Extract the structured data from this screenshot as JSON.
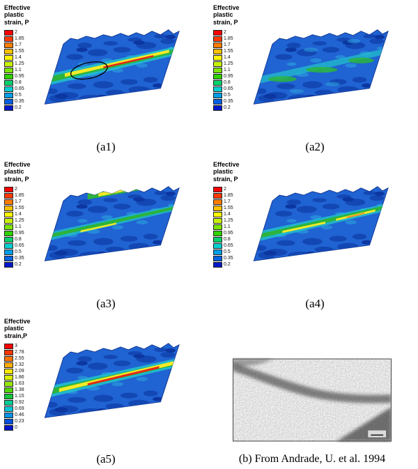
{
  "figure": {
    "panels": [
      {
        "id": "a1",
        "legend_title": "Effective\nplastic\nstrain, P",
        "legend_values": [
          "2",
          "1.85",
          "1.7",
          "1.55",
          "1.4",
          "1.25",
          "1.1",
          "0.95",
          "0.8",
          "0.65",
          "0.5",
          "0.35",
          "0.2"
        ],
        "caption": "(a1)"
      },
      {
        "id": "a2",
        "legend_title": "Effective\nplastic\nstrain, P",
        "legend_values": [
          "2",
          "1.85",
          "1.7",
          "1.55",
          "1.4",
          "1.25",
          "1.1",
          "0.95",
          "0.8",
          "0.65",
          "0.5",
          "0.35",
          "0.2"
        ],
        "caption": "(a2)"
      },
      {
        "id": "a3",
        "legend_title": "Effective\nplastic\nstrain, P",
        "legend_values": [
          "2",
          "1.85",
          "1.7",
          "1.55",
          "1.4",
          "1.25",
          "1.1",
          "0.95",
          "0.8",
          "0.65",
          "0.5",
          "0.35",
          "0.2"
        ],
        "caption": "(a3)"
      },
      {
        "id": "a4",
        "legend_title": "Effective\nplastic\nstrain, P",
        "legend_values": [
          "2",
          "1.85",
          "1.7",
          "1.55",
          "1.4",
          "1.25",
          "1.1",
          "0.95",
          "0.8",
          "0.65",
          "0.5",
          "0.35",
          "0.2"
        ],
        "caption": "(a4)"
      },
      {
        "id": "a5",
        "legend_title": "Effective\nplastic\nstrain,P",
        "legend_values": [
          "3",
          "2.78",
          "2.55",
          "2.32",
          "2.09",
          "1.86",
          "1.63",
          "1.38",
          "1.15",
          "0.92",
          "0.69",
          "0.46",
          "0.23",
          "0"
        ],
        "caption": "(a5)"
      }
    ],
    "micrograph": {
      "caption": "(b) From Andrade, U. et al. 1994"
    }
  },
  "colors": {
    "legend_13": [
      "#fe0000",
      "#ff3a00",
      "#ff7e00",
      "#ffc100",
      "#fff600",
      "#c8f200",
      "#7ce600",
      "#2ed200",
      "#00d26e",
      "#00cfd2",
      "#009ee8",
      "#0060e0",
      "#0018c8"
    ],
    "legend_14": [
      "#fe0000",
      "#ff3600",
      "#ff7200",
      "#ffae00",
      "#ffe900",
      "#d8f000",
      "#96e600",
      "#50d800",
      "#14c83c",
      "#00cc96",
      "#00c8d8",
      "#0092e6",
      "#0052dc",
      "#0014c8"
    ],
    "base_sheet_blue": "#2063d2",
    "band_cyan": "#22c4cc",
    "band_green": "#2cb43c",
    "band_yellow": "#f2ea28",
    "band_red": "#e42818"
  },
  "chart_data": [
    {
      "type": "heatmap",
      "subfigure": "(a1)",
      "title": "Effective plastic strain, P",
      "colorbar_values": [
        2,
        1.85,
        1.7,
        1.55,
        1.4,
        1.25,
        1.1,
        0.95,
        0.8,
        0.65,
        0.5,
        0.35,
        0.2
      ],
      "value_range": [
        0.2,
        2
      ],
      "legend_position": "left",
      "annotation": "black ellipse outlining shear band region"
    },
    {
      "type": "heatmap",
      "subfigure": "(a2)",
      "title": "Effective plastic strain, P",
      "colorbar_values": [
        2,
        1.85,
        1.7,
        1.55,
        1.4,
        1.25,
        1.1,
        0.95,
        0.8,
        0.65,
        0.5,
        0.35,
        0.2
      ],
      "value_range": [
        0.2,
        2
      ],
      "legend_position": "left"
    },
    {
      "type": "heatmap",
      "subfigure": "(a3)",
      "title": "Effective plastic strain, P",
      "colorbar_values": [
        2,
        1.85,
        1.7,
        1.55,
        1.4,
        1.25,
        1.1,
        0.95,
        0.8,
        0.65,
        0.5,
        0.35,
        0.2
      ],
      "value_range": [
        0.2,
        2
      ],
      "legend_position": "left"
    },
    {
      "type": "heatmap",
      "subfigure": "(a4)",
      "title": "Effective plastic strain, P",
      "colorbar_values": [
        2,
        1.85,
        1.7,
        1.55,
        1.4,
        1.25,
        1.1,
        0.95,
        0.8,
        0.65,
        0.5,
        0.35,
        0.2
      ],
      "value_range": [
        0.2,
        2
      ],
      "legend_position": "left"
    },
    {
      "type": "heatmap",
      "subfigure": "(a5)",
      "title": "Effective plastic strain,P",
      "colorbar_values": [
        3,
        2.78,
        2.55,
        2.32,
        2.09,
        1.86,
        1.63,
        1.38,
        1.15,
        0.92,
        0.69,
        0.46,
        0.23,
        0
      ],
      "value_range": [
        0,
        3
      ],
      "legend_position": "left"
    }
  ]
}
